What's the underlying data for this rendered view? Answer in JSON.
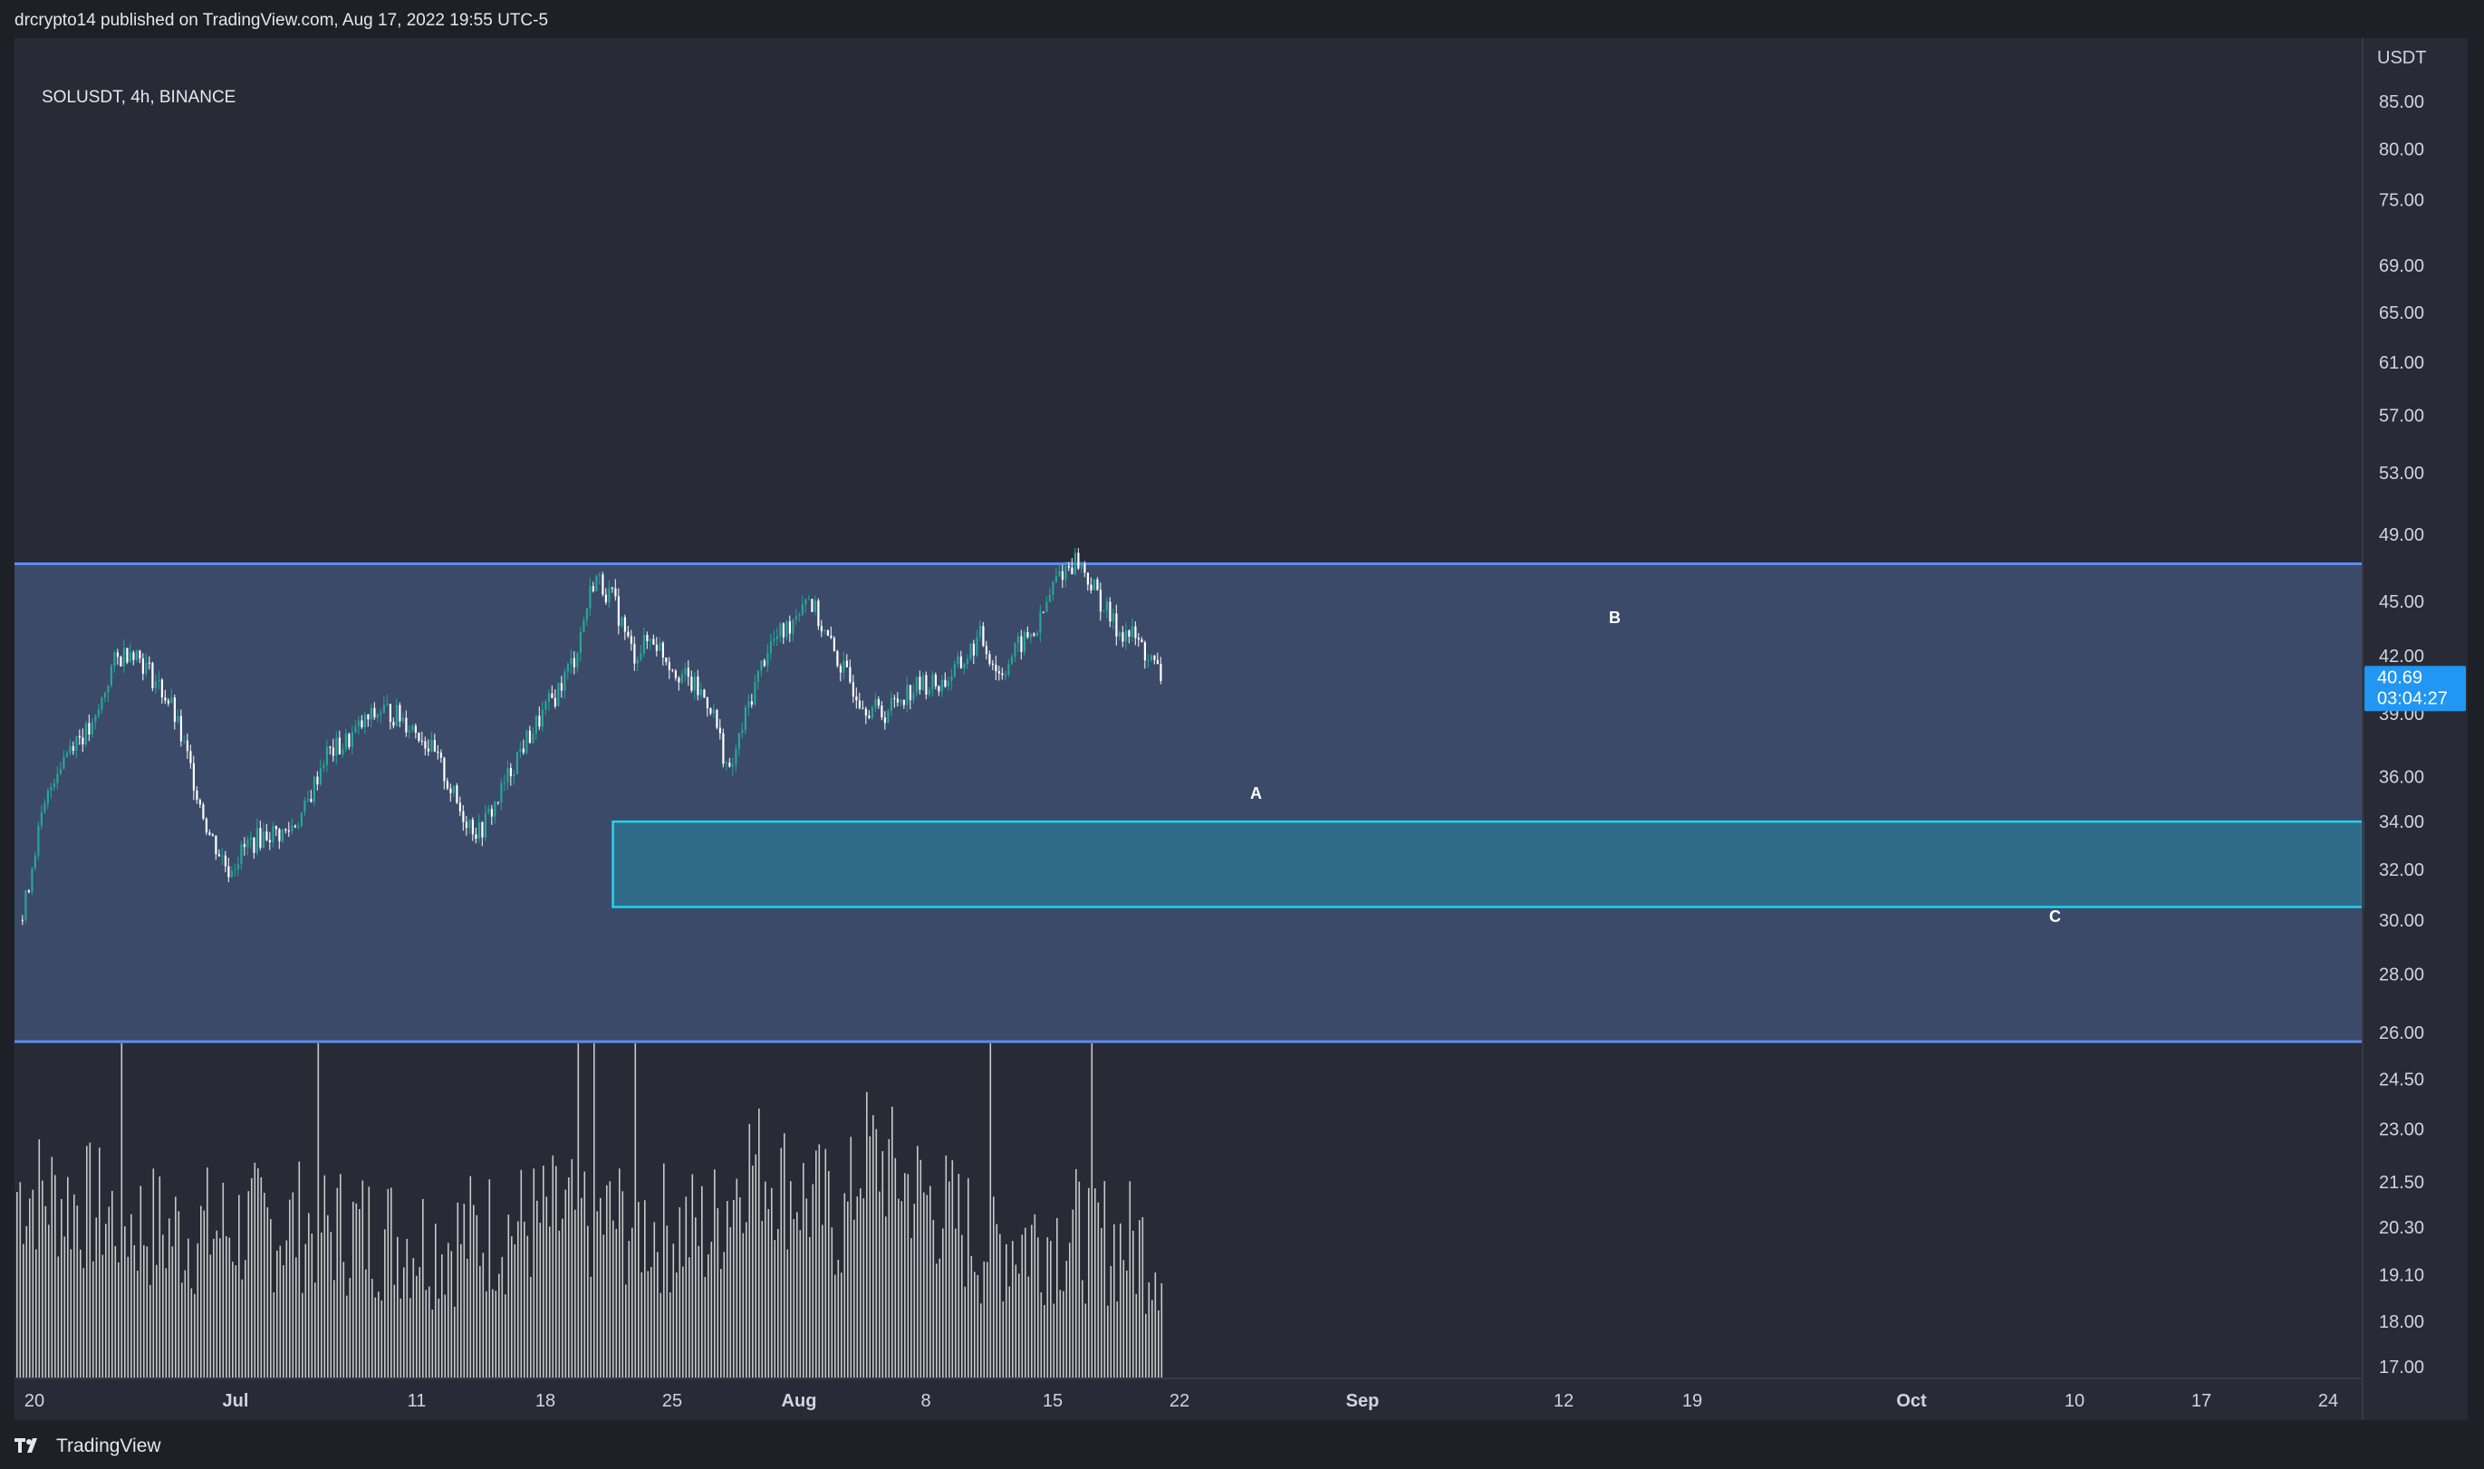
{
  "header": {
    "published_text": "drcrypto14 published on TradingView.com, Aug 17, 2022 19:55 UTC-5"
  },
  "chart": {
    "symbol_label": "SOLUSDT, 4h, BINANCE",
    "currency": "USDT",
    "last_price": "40.69",
    "countdown": "03:04:27",
    "price_ticks": [
      "85.00",
      "80.00",
      "75.00",
      "69.00",
      "65.00",
      "61.00",
      "57.00",
      "53.00",
      "49.00",
      "45.00",
      "42.00",
      "39.00",
      "36.00",
      "34.00",
      "32.00",
      "30.00",
      "28.00",
      "26.00",
      "24.50",
      "23.00",
      "21.50",
      "20.30",
      "19.10",
      "18.00",
      "17.00"
    ],
    "date_ticks": [
      "20",
      "Jul",
      "11",
      "18",
      "25",
      "Aug",
      "8",
      "15",
      "22",
      "Sep",
      "12",
      "19",
      "Oct",
      "10",
      "17",
      "24"
    ],
    "bold_date_ticks": [
      "Jul",
      "Aug",
      "Sep",
      "Oct"
    ],
    "annotations": [
      "A",
      "B",
      "C"
    ],
    "colors": {
      "background": "#282b36",
      "up_candle": "#26a69a",
      "down_candle": "#ffffff",
      "range_zone_fill": "#3a4a68",
      "range_zone_border": "#5b8ef0",
      "target_zone_fill": "#2f6b88",
      "target_zone_border": "#22d3ee",
      "last_price_label": "#2196f3",
      "volume": "#c8c8c8"
    }
  },
  "chart_data": {
    "type": "candlestick",
    "title": "SOLUSDT, 4h, BINANCE",
    "y_axis": {
      "label": "USDT",
      "scale": "log",
      "range": [
        16.5,
        95
      ]
    },
    "x_axis": {
      "range": [
        "2022-06-20",
        "2022-10-27"
      ]
    },
    "last_close": 40.69,
    "range_zone": {
      "top": 47.2,
      "bottom": 25.7,
      "from": "2022-06-20",
      "to": "2022-10-27"
    },
    "target_zone": {
      "top": 34.0,
      "bottom": 30.5,
      "from": "2022-07-20",
      "to": "2022-10-27"
    },
    "price_path": [
      [
        "2022-06-19T08:00",
        30.0
      ],
      [
        "2022-06-20",
        33.0
      ],
      [
        "2022-06-21",
        36.2
      ],
      [
        "2022-06-22",
        37.8
      ],
      [
        "2022-06-23",
        38.2
      ],
      [
        "2022-06-24",
        41.5
      ],
      [
        "2022-06-25",
        42.5
      ],
      [
        "2022-06-26",
        41.0
      ],
      [
        "2022-06-27",
        39.5
      ],
      [
        "2022-06-28",
        36.5
      ],
      [
        "2022-06-29",
        33.5
      ],
      [
        "2022-06-30",
        32.0
      ],
      [
        "2022-07-01",
        33.0
      ],
      [
        "2022-07-02",
        33.5
      ],
      [
        "2022-07-03",
        33.5
      ],
      [
        "2022-07-04",
        34.5
      ],
      [
        "2022-07-05",
        37.0
      ],
      [
        "2022-07-06",
        37.5
      ],
      [
        "2022-07-07",
        38.5
      ],
      [
        "2022-07-08",
        39.2
      ],
      [
        "2022-07-09",
        38.8
      ],
      [
        "2022-07-10",
        38.0
      ],
      [
        "2022-07-11",
        36.5
      ],
      [
        "2022-07-12",
        34.5
      ],
      [
        "2022-07-13",
        33.5
      ],
      [
        "2022-07-14",
        35.0
      ],
      [
        "2022-07-15",
        37.0
      ],
      [
        "2022-07-16",
        38.5
      ],
      [
        "2022-07-17",
        40.0
      ],
      [
        "2022-07-18",
        42.0
      ],
      [
        "2022-07-19",
        46.5
      ],
      [
        "2022-07-20",
        45.0
      ],
      [
        "2022-07-21",
        42.0
      ],
      [
        "2022-07-22",
        43.0
      ],
      [
        "2022-07-23",
        41.5
      ],
      [
        "2022-07-24",
        40.5
      ],
      [
        "2022-07-25",
        39.5
      ],
      [
        "2022-07-26",
        36.0
      ],
      [
        "2022-07-27",
        39.5
      ],
      [
        "2022-07-28",
        42.5
      ],
      [
        "2022-07-29",
        43.5
      ],
      [
        "2022-07-30",
        45.5
      ],
      [
        "2022-07-31",
        43.0
      ],
      [
        "2022-08-01",
        41.0
      ],
      [
        "2022-08-02",
        39.5
      ],
      [
        "2022-08-03",
        39.0
      ],
      [
        "2022-08-04",
        40.0
      ],
      [
        "2022-08-05",
        40.5
      ],
      [
        "2022-08-06",
        40.5
      ],
      [
        "2022-08-07",
        41.5
      ],
      [
        "2022-08-08",
        43.0
      ],
      [
        "2022-08-09",
        41.0
      ],
      [
        "2022-08-10",
        42.5
      ],
      [
        "2022-08-11",
        43.5
      ],
      [
        "2022-08-12",
        46.5
      ],
      [
        "2022-08-13",
        47.5
      ],
      [
        "2022-08-14",
        45.5
      ],
      [
        "2022-08-15",
        43.5
      ],
      [
        "2022-08-16",
        43.0
      ],
      [
        "2022-08-17T12:00",
        40.69
      ]
    ],
    "volume_path": [
      [
        "2022-06-20",
        0.7
      ],
      [
        "2022-06-27",
        0.45
      ],
      [
        "2022-07-04",
        0.5
      ],
      [
        "2022-07-11",
        0.4
      ],
      [
        "2022-07-18",
        0.55
      ],
      [
        "2022-07-25",
        0.45
      ],
      [
        "2022-07-27",
        0.9
      ],
      [
        "2022-08-01",
        0.5
      ],
      [
        "2022-08-02",
        0.95
      ],
      [
        "2022-08-08",
        0.4
      ],
      [
        "2022-08-13",
        0.45
      ],
      [
        "2022-08-17T12:00",
        0.35
      ]
    ]
  }
}
